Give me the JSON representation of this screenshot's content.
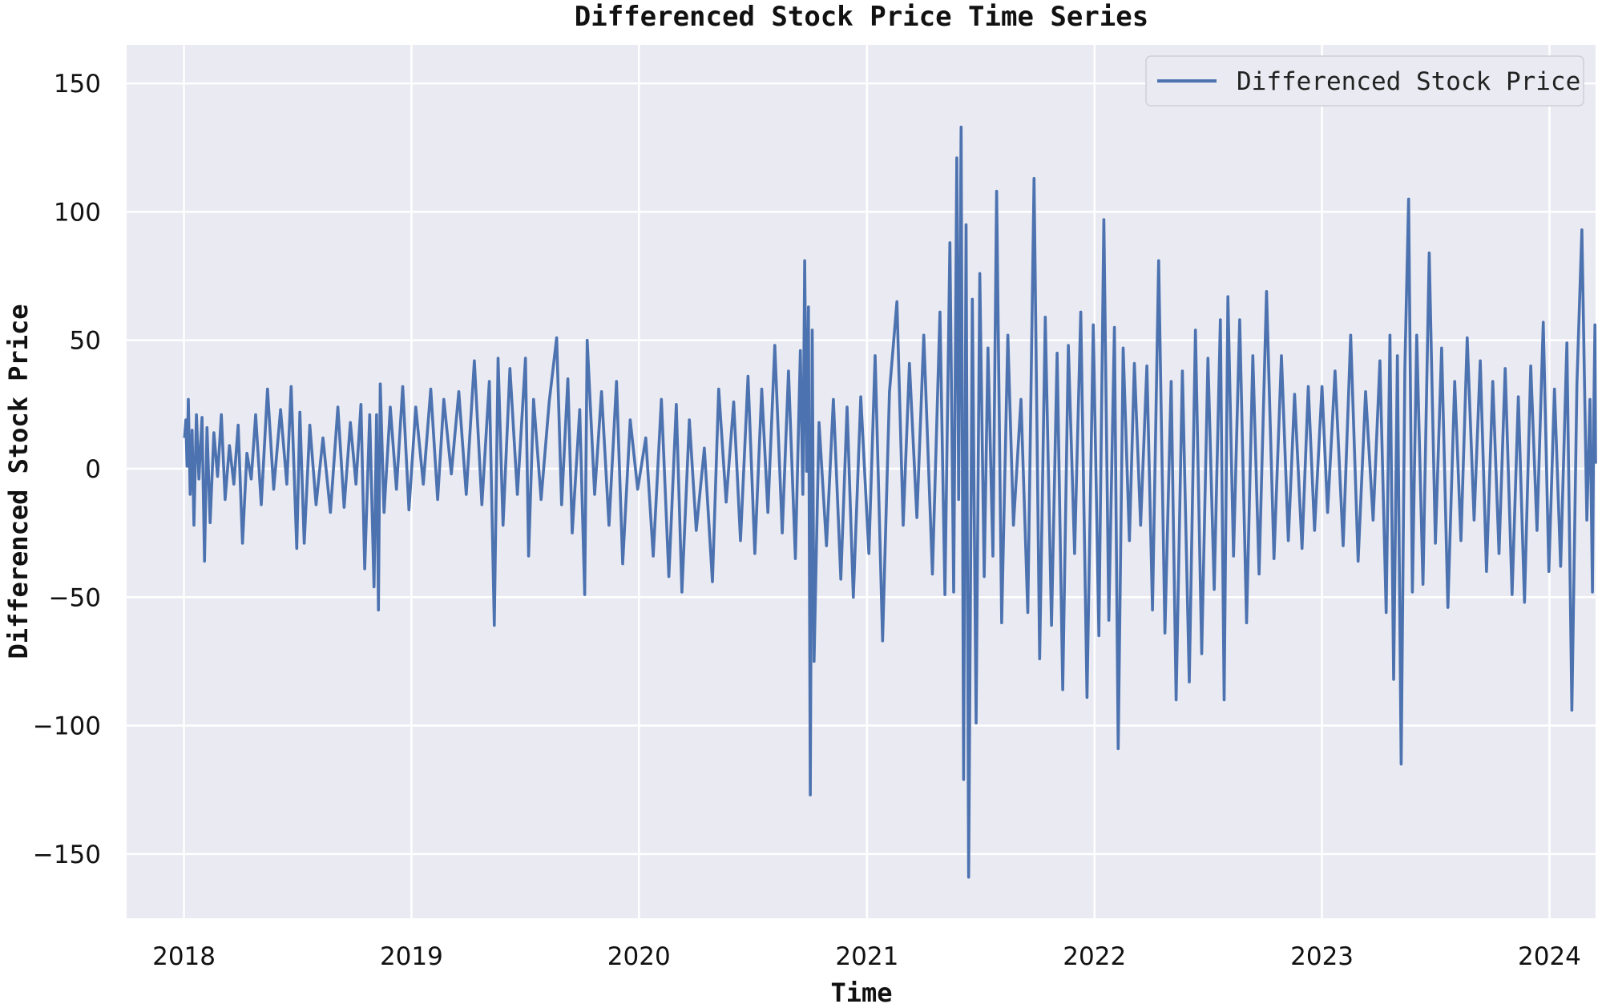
{
  "chart_data": {
    "type": "line",
    "title": "Differenced Stock Price Time Series",
    "xlabel": "Time",
    "ylabel": "Differenced Stock Price",
    "xlim": [
      "2017-10-01",
      "2024-03-15"
    ],
    "ylim": [
      -175,
      165
    ],
    "x_tick_labels": [
      "2018",
      "2019",
      "2020",
      "2021",
      "2022",
      "2023",
      "2024"
    ],
    "y_tick_values": [
      150,
      100,
      50,
      0,
      -50,
      -100,
      -150
    ],
    "y_tick_labels": [
      "150",
      "100",
      "50",
      "0",
      "−50",
      "−100",
      "−150"
    ],
    "grid": true,
    "legend_position": "top-right",
    "colors": {
      "background": "#eaeaf2",
      "grid": "#ffffff",
      "series": "#4c72b0"
    },
    "series": [
      {
        "name": "Differenced Stock Price",
        "points": [
          [
            "2018-01-02",
            12
          ],
          [
            "2018-01-04",
            19
          ],
          [
            "2018-01-06",
            1
          ],
          [
            "2018-01-08",
            27
          ],
          [
            "2018-01-11",
            -10
          ],
          [
            "2018-01-14",
            15
          ],
          [
            "2018-01-17",
            -22
          ],
          [
            "2018-01-21",
            21
          ],
          [
            "2018-01-25",
            -4
          ],
          [
            "2018-01-30",
            20
          ],
          [
            "2018-02-03",
            -36
          ],
          [
            "2018-02-07",
            16
          ],
          [
            "2018-02-12",
            -21
          ],
          [
            "2018-02-18",
            14
          ],
          [
            "2018-02-24",
            -3
          ],
          [
            "2018-03-02",
            21
          ],
          [
            "2018-03-08",
            -12
          ],
          [
            "2018-03-15",
            9
          ],
          [
            "2018-03-22",
            -6
          ],
          [
            "2018-03-29",
            17
          ],
          [
            "2018-04-05",
            -29
          ],
          [
            "2018-04-12",
            6
          ],
          [
            "2018-04-19",
            -4
          ],
          [
            "2018-04-26",
            21
          ],
          [
            "2018-05-05",
            -14
          ],
          [
            "2018-05-15",
            31
          ],
          [
            "2018-05-25",
            -8
          ],
          [
            "2018-06-05",
            23
          ],
          [
            "2018-06-15",
            -6
          ],
          [
            "2018-06-22",
            32
          ],
          [
            "2018-07-01",
            -31
          ],
          [
            "2018-07-06",
            22
          ],
          [
            "2018-07-13",
            -29
          ],
          [
            "2018-07-22",
            17
          ],
          [
            "2018-08-01",
            -14
          ],
          [
            "2018-08-12",
            12
          ],
          [
            "2018-08-24",
            -17
          ],
          [
            "2018-09-05",
            24
          ],
          [
            "2018-09-15",
            -15
          ],
          [
            "2018-09-25",
            18
          ],
          [
            "2018-10-04",
            -6
          ],
          [
            "2018-10-12",
            25
          ],
          [
            "2018-10-18",
            -39
          ],
          [
            "2018-10-26",
            21
          ],
          [
            "2018-11-02",
            -46
          ],
          [
            "2018-11-06",
            21
          ],
          [
            "2018-11-09",
            -55
          ],
          [
            "2018-11-12",
            33
          ],
          [
            "2018-11-18",
            -17
          ],
          [
            "2018-11-28",
            24
          ],
          [
            "2018-12-08",
            -8
          ],
          [
            "2018-12-18",
            32
          ],
          [
            "2018-12-28",
            -16
          ],
          [
            "2019-01-08",
            24
          ],
          [
            "2019-01-20",
            -6
          ],
          [
            "2019-02-01",
            31
          ],
          [
            "2019-02-12",
            -12
          ],
          [
            "2019-02-22",
            27
          ],
          [
            "2019-03-06",
            -2
          ],
          [
            "2019-03-18",
            30
          ],
          [
            "2019-03-30",
            -10
          ],
          [
            "2019-04-12",
            42
          ],
          [
            "2019-04-24",
            -14
          ],
          [
            "2019-05-06",
            34
          ],
          [
            "2019-05-14",
            -61
          ],
          [
            "2019-05-20",
            43
          ],
          [
            "2019-05-28",
            -22
          ],
          [
            "2019-06-08",
            39
          ],
          [
            "2019-06-20",
            -10
          ],
          [
            "2019-07-03",
            43
          ],
          [
            "2019-07-08",
            -34
          ],
          [
            "2019-07-16",
            27
          ],
          [
            "2019-07-28",
            -12
          ],
          [
            "2019-08-10",
            26
          ],
          [
            "2019-08-22",
            51
          ],
          [
            "2019-08-30",
            -14
          ],
          [
            "2019-09-09",
            35
          ],
          [
            "2019-09-16",
            -25
          ],
          [
            "2019-09-28",
            23
          ],
          [
            "2019-10-06",
            -49
          ],
          [
            "2019-10-10",
            50
          ],
          [
            "2019-10-22",
            -10
          ],
          [
            "2019-11-02",
            30
          ],
          [
            "2019-11-14",
            -22
          ],
          [
            "2019-11-26",
            34
          ],
          [
            "2019-12-06",
            -37
          ],
          [
            "2019-12-18",
            19
          ],
          [
            "2019-12-30",
            -8
          ],
          [
            "2020-01-12",
            12
          ],
          [
            "2020-01-24",
            -34
          ],
          [
            "2020-02-06",
            27
          ],
          [
            "2020-02-18",
            -42
          ],
          [
            "2020-03-01",
            25
          ],
          [
            "2020-03-10",
            -48
          ],
          [
            "2020-03-22",
            19
          ],
          [
            "2020-04-02",
            -24
          ],
          [
            "2020-04-15",
            8
          ],
          [
            "2020-04-28",
            -44
          ],
          [
            "2020-05-08",
            31
          ],
          [
            "2020-05-20",
            -13
          ],
          [
            "2020-06-01",
            26
          ],
          [
            "2020-06-12",
            -28
          ],
          [
            "2020-06-24",
            36
          ],
          [
            "2020-07-05",
            -33
          ],
          [
            "2020-07-16",
            31
          ],
          [
            "2020-07-26",
            -17
          ],
          [
            "2020-08-06",
            48
          ],
          [
            "2020-08-18",
            -25
          ],
          [
            "2020-08-28",
            38
          ],
          [
            "2020-09-08",
            -35
          ],
          [
            "2020-09-16",
            46
          ],
          [
            "2020-09-20",
            -10
          ],
          [
            "2020-09-23",
            81
          ],
          [
            "2020-09-26",
            -1
          ],
          [
            "2020-09-29",
            63
          ],
          [
            "2020-10-02",
            -127
          ],
          [
            "2020-10-05",
            54
          ],
          [
            "2020-10-08",
            -75
          ],
          [
            "2020-10-16",
            18
          ],
          [
            "2020-10-28",
            -30
          ],
          [
            "2020-11-08",
            27
          ],
          [
            "2020-11-20",
            -43
          ],
          [
            "2020-11-30",
            24
          ],
          [
            "2020-12-10",
            -50
          ],
          [
            "2020-12-22",
            28
          ],
          [
            "2021-01-04",
            -33
          ],
          [
            "2021-01-14",
            44
          ],
          [
            "2021-01-26",
            -67
          ],
          [
            "2021-02-06",
            30
          ],
          [
            "2021-02-18",
            65
          ],
          [
            "2021-02-28",
            -22
          ],
          [
            "2021-03-10",
            41
          ],
          [
            "2021-03-22",
            -19
          ],
          [
            "2021-04-02",
            52
          ],
          [
            "2021-04-16",
            -41
          ],
          [
            "2021-04-28",
            61
          ],
          [
            "2021-05-06",
            -49
          ],
          [
            "2021-05-14",
            88
          ],
          [
            "2021-05-20",
            -48
          ],
          [
            "2021-05-25",
            121
          ],
          [
            "2021-05-28",
            -12
          ],
          [
            "2021-06-01",
            133
          ],
          [
            "2021-06-05",
            -121
          ],
          [
            "2021-06-09",
            95
          ],
          [
            "2021-06-13",
            -159
          ],
          [
            "2021-06-19",
            66
          ],
          [
            "2021-06-25",
            -99
          ],
          [
            "2021-07-01",
            76
          ],
          [
            "2021-07-08",
            -42
          ],
          [
            "2021-07-14",
            47
          ],
          [
            "2021-07-22",
            -34
          ],
          [
            "2021-07-28",
            108
          ],
          [
            "2021-08-05",
            -60
          ],
          [
            "2021-08-15",
            52
          ],
          [
            "2021-08-24",
            -22
          ],
          [
            "2021-09-05",
            27
          ],
          [
            "2021-09-16",
            -56
          ],
          [
            "2021-09-26",
            113
          ],
          [
            "2021-10-05",
            -74
          ],
          [
            "2021-10-14",
            59
          ],
          [
            "2021-10-24",
            -61
          ],
          [
            "2021-11-02",
            45
          ],
          [
            "2021-11-11",
            -86
          ],
          [
            "2021-11-20",
            48
          ],
          [
            "2021-11-30",
            -33
          ],
          [
            "2021-12-10",
            61
          ],
          [
            "2021-12-20",
            -89
          ],
          [
            "2021-12-30",
            56
          ],
          [
            "2022-01-08",
            -65
          ],
          [
            "2022-01-16",
            97
          ],
          [
            "2022-01-24",
            -59
          ],
          [
            "2022-02-02",
            55
          ],
          [
            "2022-02-08",
            -109
          ],
          [
            "2022-02-16",
            47
          ],
          [
            "2022-02-26",
            -28
          ],
          [
            "2022-03-06",
            41
          ],
          [
            "2022-03-16",
            -22
          ],
          [
            "2022-03-26",
            40
          ],
          [
            "2022-04-04",
            -55
          ],
          [
            "2022-04-14",
            81
          ],
          [
            "2022-04-24",
            -64
          ],
          [
            "2022-05-04",
            34
          ],
          [
            "2022-05-12",
            -90
          ],
          [
            "2022-05-22",
            38
          ],
          [
            "2022-06-02",
            -83
          ],
          [
            "2022-06-12",
            54
          ],
          [
            "2022-06-22",
            -72
          ],
          [
            "2022-07-02",
            43
          ],
          [
            "2022-07-12",
            -47
          ],
          [
            "2022-07-22",
            58
          ],
          [
            "2022-07-28",
            -90
          ],
          [
            "2022-08-03",
            67
          ],
          [
            "2022-08-12",
            -34
          ],
          [
            "2022-08-22",
            58
          ],
          [
            "2022-09-02",
            -60
          ],
          [
            "2022-09-12",
            44
          ],
          [
            "2022-09-22",
            -41
          ],
          [
            "2022-10-04",
            69
          ],
          [
            "2022-10-16",
            -35
          ],
          [
            "2022-10-28",
            44
          ],
          [
            "2022-11-08",
            -28
          ],
          [
            "2022-11-18",
            29
          ],
          [
            "2022-11-30",
            -31
          ],
          [
            "2022-12-10",
            32
          ],
          [
            "2022-12-20",
            -24
          ],
          [
            "2023-01-01",
            32
          ],
          [
            "2023-01-10",
            -17
          ],
          [
            "2023-01-22",
            38
          ],
          [
            "2023-02-04",
            -30
          ],
          [
            "2023-02-16",
            52
          ],
          [
            "2023-02-28",
            -36
          ],
          [
            "2023-03-12",
            30
          ],
          [
            "2023-03-24",
            -20
          ],
          [
            "2023-04-04",
            42
          ],
          [
            "2023-04-14",
            -56
          ],
          [
            "2023-04-20",
            52
          ],
          [
            "2023-04-26",
            -82
          ],
          [
            "2023-05-02",
            44
          ],
          [
            "2023-05-08",
            -115
          ],
          [
            "2023-05-14",
            39
          ],
          [
            "2023-05-20",
            105
          ],
          [
            "2023-05-26",
            -48
          ],
          [
            "2023-06-02",
            52
          ],
          [
            "2023-06-12",
            -45
          ],
          [
            "2023-06-22",
            84
          ],
          [
            "2023-07-02",
            -29
          ],
          [
            "2023-07-12",
            47
          ],
          [
            "2023-07-22",
            -54
          ],
          [
            "2023-08-02",
            34
          ],
          [
            "2023-08-12",
            -28
          ],
          [
            "2023-08-22",
            51
          ],
          [
            "2023-09-02",
            -20
          ],
          [
            "2023-09-12",
            42
          ],
          [
            "2023-09-22",
            -40
          ],
          [
            "2023-10-02",
            34
          ],
          [
            "2023-10-12",
            -33
          ],
          [
            "2023-10-22",
            39
          ],
          [
            "2023-11-02",
            -49
          ],
          [
            "2023-11-12",
            28
          ],
          [
            "2023-11-22",
            -52
          ],
          [
            "2023-12-02",
            40
          ],
          [
            "2023-12-12",
            -24
          ],
          [
            "2023-12-22",
            57
          ],
          [
            "2023-12-31",
            -40
          ],
          [
            "2024-01-09",
            31
          ],
          [
            "2024-01-19",
            -38
          ],
          [
            "2024-01-29",
            49
          ],
          [
            "2024-02-06",
            -94
          ],
          [
            "2024-02-14",
            33
          ],
          [
            "2024-02-22",
            93
          ],
          [
            "2024-03-01",
            -20
          ],
          [
            "2024-03-06",
            27
          ],
          [
            "2024-03-10",
            -48
          ],
          [
            "2024-03-12",
            20
          ],
          [
            "2024-03-14",
            56
          ],
          [
            "2024-03-15",
            2
          ]
        ]
      }
    ]
  }
}
